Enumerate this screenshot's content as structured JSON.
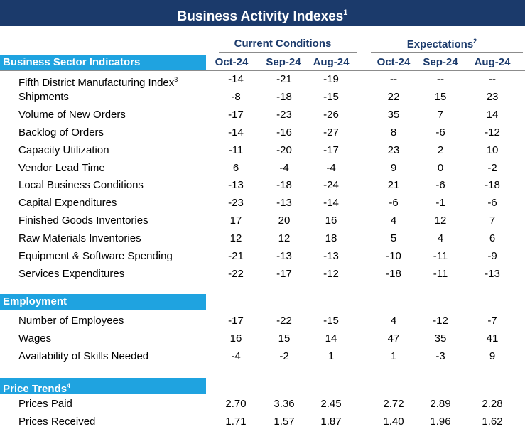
{
  "title": "Business Activity Indexes",
  "title_note": "1",
  "groups": {
    "current": "Current Conditions",
    "expectations": "Expectations",
    "expectations_note": "2"
  },
  "columns": [
    "Oct-24",
    "Sep-24",
    "Aug-24",
    "Oct-24",
    "Sep-24",
    "Aug-24"
  ],
  "sections": [
    {
      "name": "Business Sector Indicators",
      "note": "",
      "rows": [
        {
          "label": "Fifth District Manufacturing Index",
          "note": "3",
          "values": [
            "-14",
            "-21",
            "-19",
            "--",
            "--",
            "--"
          ]
        },
        {
          "label": "Shipments",
          "note": "",
          "values": [
            "-8",
            "-18",
            "-15",
            "22",
            "15",
            "23"
          ]
        },
        {
          "label": "Volume of New Orders",
          "note": "",
          "values": [
            "-17",
            "-23",
            "-26",
            "35",
            "7",
            "14"
          ]
        },
        {
          "label": "Backlog of Orders",
          "note": "",
          "values": [
            "-14",
            "-16",
            "-27",
            "8",
            "-6",
            "-12"
          ]
        },
        {
          "label": "Capacity Utilization",
          "note": "",
          "values": [
            "-11",
            "-20",
            "-17",
            "23",
            "2",
            "10"
          ]
        },
        {
          "label": "Vendor Lead Time",
          "note": "",
          "values": [
            "6",
            "-4",
            "-4",
            "9",
            "0",
            "-2"
          ]
        },
        {
          "label": "Local Business Conditions",
          "note": "",
          "values": [
            "-13",
            "-18",
            "-24",
            "21",
            "-6",
            "-18"
          ]
        },
        {
          "label": "Capital Expenditures",
          "note": "",
          "values": [
            "-23",
            "-13",
            "-14",
            "-6",
            "-1",
            "-6"
          ]
        },
        {
          "label": "Finished Goods Inventories",
          "note": "",
          "values": [
            "17",
            "20",
            "16",
            "4",
            "12",
            "7"
          ]
        },
        {
          "label": "Raw Materials Inventories",
          "note": "",
          "values": [
            "12",
            "12",
            "18",
            "5",
            "4",
            "6"
          ]
        },
        {
          "label": "Equipment & Software Spending",
          "note": "",
          "values": [
            "-21",
            "-13",
            "-13",
            "-10",
            "-11",
            "-9"
          ]
        },
        {
          "label": "Services Expenditures",
          "note": "",
          "values": [
            "-22",
            "-17",
            "-12",
            "-18",
            "-11",
            "-13"
          ]
        }
      ]
    },
    {
      "name": "Employment",
      "note": "",
      "rows": [
        {
          "label": "Number of Employees",
          "note": "",
          "values": [
            "-17",
            "-22",
            "-15",
            "4",
            "-12",
            "-7"
          ]
        },
        {
          "label": "Wages",
          "note": "",
          "values": [
            "16",
            "15",
            "14",
            "47",
            "35",
            "41"
          ]
        },
        {
          "label": "Availability of Skills Needed",
          "note": "",
          "values": [
            "-4",
            "-2",
            "1",
            "1",
            "-3",
            "9"
          ]
        }
      ]
    },
    {
      "name": "Price Trends",
      "note": "4",
      "rows": [
        {
          "label": "Prices Paid",
          "note": "",
          "values": [
            "2.70",
            "3.36",
            "2.45",
            "2.72",
            "2.89",
            "2.28"
          ]
        },
        {
          "label": "Prices Received",
          "note": "",
          "values": [
            "1.71",
            "1.57",
            "1.87",
            "1.40",
            "1.96",
            "1.62"
          ]
        }
      ]
    }
  ]
}
